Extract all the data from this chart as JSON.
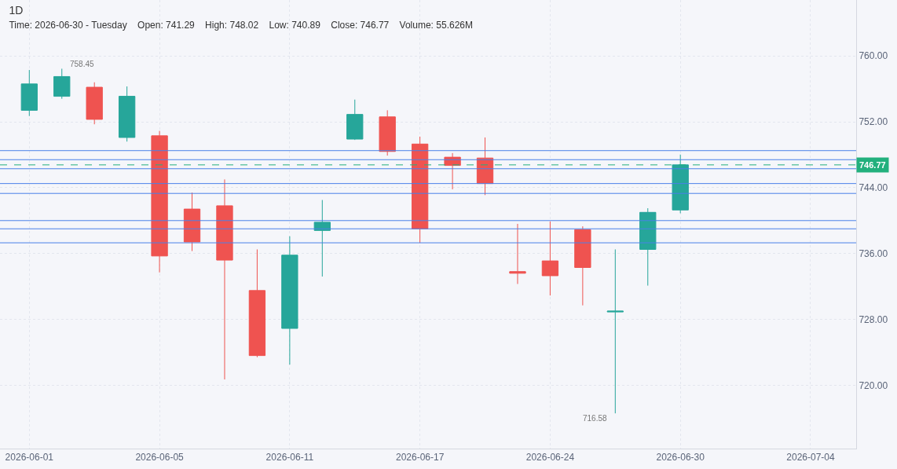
{
  "chart_data": {
    "type": "candlestick",
    "title": "1D",
    "subtitle": "Time: 2026-06-30 - Tuesday    Open: 741.29    High: 748.02    Low: 740.89    Close: 746.77    Volume: 55.626M",
    "categories": [
      "2026-06-01",
      null,
      null,
      null,
      "2026-06-05",
      null,
      null,
      null,
      "2026-06-11",
      null,
      null,
      null,
      "2026-06-17",
      null,
      null,
      null,
      "2026-06-24",
      null,
      null,
      null,
      "2026-06-30",
      null,
      null,
      null,
      "2026-07-04",
      null
    ],
    "ohlc": [
      [
        753.4,
        758.3,
        752.7,
        756.6
      ],
      [
        755.1,
        758.45,
        754.8,
        757.5
      ],
      [
        756.2,
        756.8,
        751.7,
        752.3
      ],
      [
        750.1,
        756.3,
        749.6,
        755.1
      ],
      [
        750.3,
        750.9,
        733.7,
        735.7
      ],
      [
        741.4,
        743.4,
        736.3,
        737.4
      ],
      [
        741.8,
        745.0,
        720.7,
        735.2
      ],
      [
        731.5,
        736.5,
        723.4,
        723.6
      ],
      [
        726.9,
        738.1,
        722.5,
        735.8
      ],
      [
        738.8,
        742.5,
        733.2,
        739.8
      ],
      [
        749.9,
        754.7,
        749.8,
        752.9
      ],
      [
        752.6,
        753.4,
        747.9,
        748.4
      ],
      [
        749.3,
        750.2,
        737.3,
        739.0
      ],
      [
        747.7,
        748.2,
        743.8,
        746.7
      ],
      [
        747.6,
        750.1,
        743.1,
        744.5
      ],
      [
        733.8,
        739.6,
        732.3,
        733.6
      ],
      [
        735.1,
        739.9,
        730.9,
        733.3
      ],
      [
        738.9,
        739.3,
        729.7,
        734.3
      ],
      [
        728.9,
        736.5,
        716.58,
        729.0
      ],
      [
        736.5,
        741.5,
        732.1,
        741.0
      ],
      [
        741.29,
        748.02,
        740.89,
        746.77
      ],
      null,
      null,
      null,
      null,
      null
    ],
    "colors": [
      "#26a69a",
      "#26a69a",
      "#ef5350",
      "#26a69a",
      "#ef5350",
      "#ef5350",
      "#ef5350",
      "#ef5350",
      "#26a69a",
      "#26a69a",
      "#26a69a",
      "#ef5350",
      "#ef5350",
      "#ef5350",
      "#ef5350",
      "#ef5350",
      "#ef5350",
      "#ef5350",
      "#26a69a",
      "#26a69a",
      "#26a69a",
      null,
      null,
      null,
      null,
      null
    ],
    "ylim": [
      712.3,
      766.8
    ],
    "yticks": [
      {
        "value": 720,
        "label": "720.00"
      },
      {
        "value": 728,
        "label": "728.00"
      },
      {
        "value": 736,
        "label": "736.00"
      },
      {
        "value": 744,
        "label": "744.00"
      },
      {
        "value": 752,
        "label": "752.00"
      },
      {
        "value": 760,
        "label": "760.00"
      }
    ],
    "annotations": [
      "758.45",
      "716.58"
    ],
    "ref_lines": [
      {
        "axis": "y",
        "value": 748.5,
        "color": "#4a80e8"
      },
      {
        "axis": "y",
        "value": 747.4,
        "color": "#4a80e8"
      },
      {
        "axis": "y",
        "value": 746.77,
        "label": "746.77",
        "color": "#22b07d",
        "line_style": "dashed"
      },
      {
        "axis": "y",
        "value": 746.3,
        "color": "#4a80e8"
      },
      {
        "axis": "y",
        "value": 744.5,
        "color": "#4a80e8"
      },
      {
        "axis": "y",
        "value": 743.3,
        "color": "#4a80e8"
      },
      {
        "axis": "y",
        "value": 740.0,
        "color": "#4a80e8"
      },
      {
        "axis": "y",
        "value": 739.0,
        "color": "#4a80e8"
      },
      {
        "axis": "y",
        "value": 737.3,
        "color": "#4a80e8"
      }
    ],
    "grid": true
  }
}
